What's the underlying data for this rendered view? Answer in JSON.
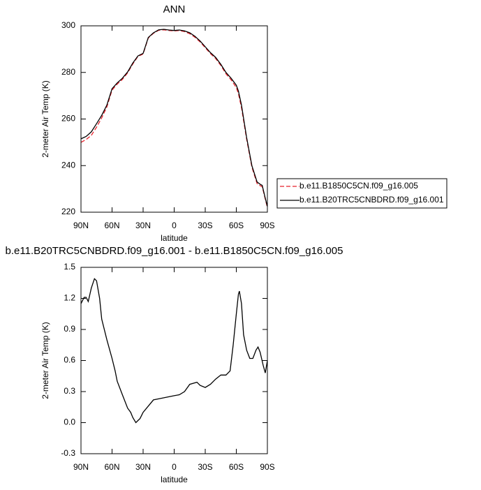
{
  "chart_data": [
    {
      "type": "line",
      "title": "ANN",
      "xlabel": "latitude",
      "ylabel": "2-meter Air Temp (K)",
      "xlim": [
        90,
        -90
      ],
      "ylim": [
        220,
        300
      ],
      "xticks": [
        {
          "value": 90,
          "label": "90N"
        },
        {
          "value": 60,
          "label": "60N"
        },
        {
          "value": 30,
          "label": "30N"
        },
        0,
        {
          "value": -30,
          "label": "30S"
        },
        {
          "value": -60,
          "label": "60S"
        },
        {
          "value": -90,
          "label": "90S"
        }
      ],
      "yticks": [
        220,
        240,
        260,
        280,
        300
      ],
      "legend": "outside-right",
      "x": [
        90,
        85,
        80,
        75,
        70,
        65,
        60,
        55,
        50,
        45,
        40,
        35,
        30,
        25,
        20,
        15,
        10,
        5,
        0,
        -5,
        -10,
        -15,
        -20,
        -25,
        -30,
        -35,
        -40,
        -45,
        -50,
        -55,
        -60,
        -62,
        -65,
        -70,
        -75,
        -80,
        -83,
        -85,
        -88,
        -90
      ],
      "series": [
        {
          "name": "b.e11.B1850C5CN.f09_g16.005",
          "color": "#e8202a",
          "dash": true,
          "values": [
            250,
            251.2,
            253,
            256.5,
            260.5,
            265.2,
            272.4,
            275,
            277,
            279.8,
            283.6,
            286.9,
            287.9,
            294.8,
            296.8,
            298.1,
            298.3,
            298,
            297.8,
            298,
            297.5,
            296.6,
            295.1,
            293.1,
            290.6,
            288.1,
            286,
            283,
            279.4,
            276.8,
            273.5,
            270.9,
            264.9,
            251.3,
            239.4,
            232.3,
            231.4,
            231,
            225.6,
            222
          ]
        },
        {
          "name": "b.e11.B20TRC5CNBDRD.f09_g16.001",
          "color": "#000000",
          "dash": false,
          "values": [
            251.5,
            252.5,
            254.5,
            258,
            261.6,
            266,
            273,
            275.5,
            277.5,
            280.2,
            284,
            287.1,
            288.2,
            295,
            297,
            298.3,
            298.5,
            298.2,
            298,
            298.2,
            297.8,
            297,
            295.5,
            293.5,
            291,
            288.5,
            286.5,
            283.5,
            280,
            277.5,
            274.5,
            272,
            266,
            252,
            240,
            233,
            232,
            231.5,
            226,
            222.5
          ]
        }
      ]
    },
    {
      "type": "line",
      "title": "b.e11.B20TRC5CNBDRD.f09_g16.001 - b.e11.B1850C5CN.f09_g16.005",
      "xlabel": "latitude",
      "ylabel": "2-meter Air Temp (K)",
      "xlim": [
        90,
        -90
      ],
      "ylim": [
        -0.3,
        1.5
      ],
      "xticks": [
        {
          "value": 90,
          "label": "90N"
        },
        {
          "value": 60,
          "label": "60N"
        },
        {
          "value": 30,
          "label": "30N"
        },
        0,
        {
          "value": -30,
          "label": "30S"
        },
        {
          "value": -60,
          "label": "60S"
        },
        {
          "value": -90,
          "label": "90S"
        }
      ],
      "yticks": [
        -0.3,
        {
          "value": 0,
          "label": "0.0"
        },
        0.3,
        0.6,
        0.9,
        1.2,
        1.5
      ],
      "x": [
        90,
        87,
        85,
        83,
        80,
        77,
        75,
        72,
        70,
        65,
        60,
        57,
        55,
        50,
        45,
        42,
        40,
        37,
        35,
        33,
        30,
        25,
        20,
        15,
        10,
        5,
        0,
        -5,
        -10,
        -15,
        -22,
        -25,
        -30,
        -35,
        -40,
        -45,
        -50,
        -54,
        -57,
        -60,
        -62,
        -63,
        -65,
        -67,
        -70,
        -73,
        -76,
        -79,
        -81,
        -83,
        -86,
        -88,
        -90
      ],
      "color": "#000000",
      "values": [
        1.15,
        1.21,
        1.21,
        1.17,
        1.3,
        1.39,
        1.37,
        1.2,
        1.0,
        0.8,
        0.62,
        0.5,
        0.4,
        0.27,
        0.14,
        0.1,
        0.05,
        0.0,
        0.02,
        0.04,
        0.1,
        0.16,
        0.22,
        0.23,
        0.24,
        0.25,
        0.26,
        0.27,
        0.3,
        0.37,
        0.39,
        0.36,
        0.34,
        0.37,
        0.42,
        0.46,
        0.46,
        0.5,
        0.75,
        1.05,
        1.24,
        1.27,
        1.15,
        0.85,
        0.7,
        0.62,
        0.62,
        0.7,
        0.73,
        0.68,
        0.55,
        0.48,
        0.6
      ]
    }
  ]
}
